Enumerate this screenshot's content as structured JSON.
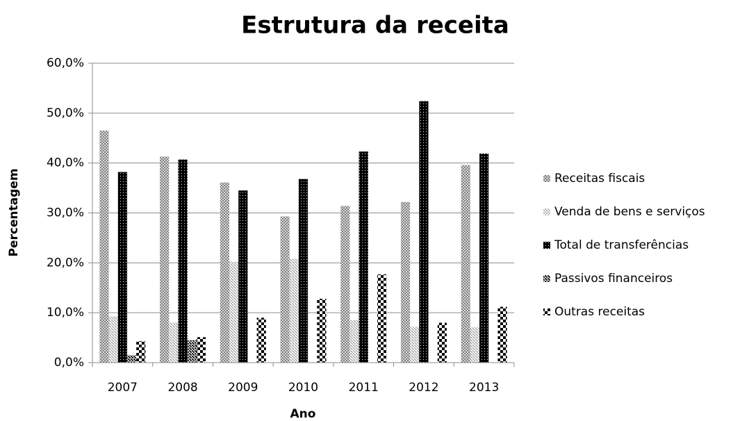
{
  "chart_data": {
    "type": "bar",
    "title": "Estrutura da receita",
    "x_label": "Ano",
    "y_label": "Percentagem",
    "categories": [
      "2007",
      "2008",
      "2009",
      "2010",
      "2011",
      "2012",
      "2013"
    ],
    "series": [
      {
        "name": "Receitas fiscais",
        "color": "#808080",
        "values": [
          46.5,
          41.3,
          36.1,
          29.3,
          31.4,
          32.2,
          39.6
        ]
      },
      {
        "name": "Venda de bens e serviços",
        "color": "#a6a6a6",
        "values": [
          9.3,
          8.0,
          20.2,
          20.8,
          8.5,
          7.2,
          7.1
        ]
      },
      {
        "name": "Total de transferências",
        "color": "#000000",
        "values": [
          38.2,
          40.7,
          34.5,
          36.8,
          42.3,
          52.4,
          41.9
        ]
      },
      {
        "name": "Passivos financeiros",
        "color": "#262626",
        "values": [
          1.5,
          4.5,
          0,
          0,
          0,
          0,
          0
        ]
      },
      {
        "name": "Outras receitas",
        "color": "#000000",
        "values": [
          4.3,
          5.1,
          9.0,
          12.8,
          17.7,
          8.0,
          11.2
        ]
      }
    ],
    "ylim": [
      0,
      60
    ],
    "yticks": [
      {
        "value": 0,
        "label": "0,0%"
      },
      {
        "value": 10,
        "label": "10,0%"
      },
      {
        "value": 20,
        "label": "20,0%"
      },
      {
        "value": 30,
        "label": "30,0%"
      },
      {
        "value": 40,
        "label": "40,0%"
      },
      {
        "value": 50,
        "label": "50,0%"
      },
      {
        "value": 60,
        "label": "60,0%"
      }
    ],
    "grid": true,
    "legend": "right"
  }
}
